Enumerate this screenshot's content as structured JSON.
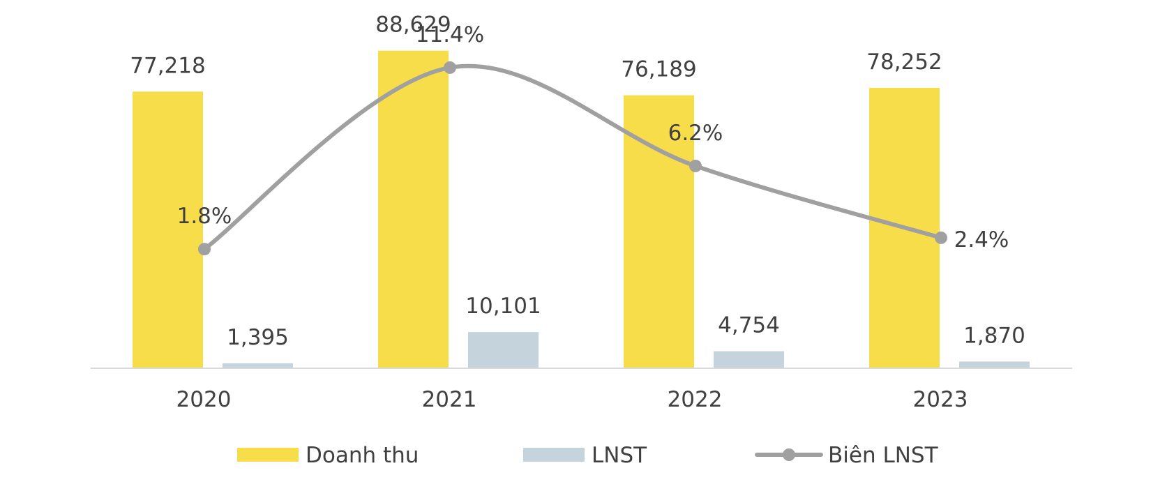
{
  "chart_data": {
    "type": "bar",
    "categories": [
      "2020",
      "2021",
      "2022",
      "2023"
    ],
    "series": [
      {
        "name": "Doanh thu",
        "type": "bar",
        "axis": "left",
        "color": "#F8DD4B",
        "values": [
          77218,
          88629,
          76189,
          78252
        ],
        "labels": [
          "77,218",
          "88,629",
          "76,189",
          "78,252"
        ]
      },
      {
        "name": "LNST",
        "type": "bar",
        "axis": "left",
        "color": "#C5D4DC",
        "values": [
          1395,
          10101,
          4754,
          1870
        ],
        "labels": [
          "1,395",
          "10,101",
          "4,754",
          "1,870"
        ]
      },
      {
        "name": "Biên LNST",
        "type": "line",
        "axis": "right",
        "color": "#A0A0A0",
        "values": [
          1.8,
          11.4,
          6.2,
          2.4
        ],
        "labels": [
          "1.8%",
          "11.4%",
          "6.2%",
          "2.4%"
        ]
      }
    ],
    "ylim_left": [
      0,
      95000
    ],
    "ylim_right": [
      -4.5,
      13.5
    ],
    "axes_visible": false,
    "grid": false,
    "legend_position": "bottom-center"
  }
}
